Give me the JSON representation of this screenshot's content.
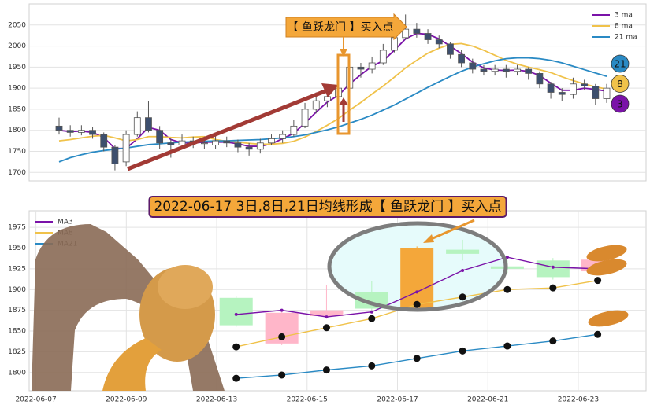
{
  "chart_data": [
    {
      "type": "candlestick",
      "open": [
        1810,
        1800,
        1795,
        1800,
        1790,
        1760,
        1725,
        1790,
        1830,
        1800,
        1770,
        1765,
        1775,
        1770,
        1765,
        1775,
        1770,
        1760,
        1755,
        1770,
        1780,
        1790,
        1810,
        1850,
        1870,
        1880,
        1900,
        1950,
        1945,
        1960,
        1990,
        2020,
        2040,
        2030,
        2015,
        2005,
        1980,
        1960,
        1945,
        1940,
        1945,
        1940,
        1945,
        1935,
        1910,
        1890,
        1885,
        1910,
        1905,
        1875
      ],
      "high": [
        1830,
        1812,
        1812,
        1808,
        1795,
        1765,
        1800,
        1845,
        1870,
        1810,
        1780,
        1790,
        1785,
        1785,
        1790,
        1785,
        1778,
        1770,
        1780,
        1790,
        1800,
        1825,
        1865,
        1890,
        1895,
        1920,
        1965,
        1960,
        1975,
        2005,
        2035,
        2075,
        2055,
        2040,
        2025,
        2010,
        1990,
        1970,
        1955,
        1955,
        1955,
        1955,
        1950,
        1940,
        1915,
        1900,
        1925,
        1920,
        1910,
        1910
      ],
      "low": [
        1790,
        1785,
        1788,
        1780,
        1750,
        1705,
        1715,
        1785,
        1795,
        1755,
        1735,
        1755,
        1758,
        1755,
        1755,
        1760,
        1748,
        1740,
        1745,
        1765,
        1770,
        1785,
        1805,
        1840,
        1855,
        1870,
        1895,
        1925,
        1935,
        1955,
        1985,
        2015,
        2020,
        2005,
        1995,
        1970,
        1950,
        1935,
        1930,
        1930,
        1925,
        1930,
        1920,
        1900,
        1875,
        1870,
        1875,
        1895,
        1860,
        1865
      ],
      "close": [
        1800,
        1795,
        1800,
        1790,
        1760,
        1720,
        1790,
        1830,
        1800,
        1770,
        1765,
        1775,
        1770,
        1770,
        1775,
        1770,
        1760,
        1755,
        1770,
        1780,
        1790,
        1810,
        1850,
        1870,
        1880,
        1900,
        1950,
        1945,
        1960,
        1990,
        2020,
        2040,
        2030,
        2015,
        2005,
        1980,
        1960,
        1945,
        1940,
        1945,
        1940,
        1945,
        1935,
        1910,
        1890,
        1885,
        1910,
        1905,
        1875,
        1900
      ],
      "up_color": "#ffffff",
      "down_color": "#3d4f6e",
      "edge_color": "#555555",
      "series": [
        {
          "name": "3 ma",
          "color": "#7a12a8",
          "values": [
            1800,
            1797,
            1798,
            1795,
            1783,
            1757,
            1757,
            1780,
            1807,
            1800,
            1778,
            1770,
            1770,
            1772,
            1772,
            1772,
            1768,
            1762,
            1762,
            1768,
            1780,
            1793,
            1817,
            1843,
            1867,
            1883,
            1910,
            1932,
            1952,
            1965,
            1990,
            2017,
            2030,
            2028,
            2017,
            2000,
            1982,
            1962,
            1948,
            1943,
            1942,
            1943,
            1940,
            1930,
            1912,
            1895,
            1895,
            1900,
            1897,
            1893
          ]
        },
        {
          "name": "8 ma",
          "color": "#f0c24a",
          "values": [
            1775,
            1778,
            1782,
            1786,
            1788,
            1782,
            1775,
            1778,
            1785,
            1785,
            1783,
            1782,
            1784,
            1785,
            1778,
            1774,
            1772,
            1769,
            1767,
            1767,
            1769,
            1774,
            1784,
            1797,
            1812,
            1828,
            1848,
            1866,
            1886,
            1905,
            1926,
            1948,
            1966,
            1983,
            1995,
            2004,
            2006,
            2000,
            1990,
            1978,
            1966,
            1957,
            1950,
            1944,
            1937,
            1927,
            1918,
            1910,
            1903,
            1898
          ]
        },
        {
          "name": "21 ma",
          "color": "#2a8ac4",
          "values": [
            1725,
            1735,
            1742,
            1748,
            1752,
            1755,
            1758,
            1762,
            1766,
            1768,
            1770,
            1772,
            1773,
            1774,
            1775,
            1775,
            1776,
            1777,
            1778,
            1780,
            1782,
            1785,
            1789,
            1795,
            1801,
            1808,
            1817,
            1826,
            1836,
            1848,
            1860,
            1874,
            1888,
            1902,
            1915,
            1928,
            1940,
            1950,
            1958,
            1965,
            1970,
            1972,
            1972,
            1970,
            1966,
            1960,
            1952,
            1944,
            1936,
            1928
          ]
        }
      ],
      "ylim": [
        1680,
        2100
      ],
      "yticks": [
        1700,
        1750,
        1800,
        1850,
        1900,
        1950,
        2000,
        2050
      ],
      "grid": true,
      "legend": "upper right",
      "callout": "【 鱼跃龙门 】买入点",
      "badges": [
        {
          "label": "21",
          "color": "#2a8ac4"
        },
        {
          "label": "8",
          "color": "#f0c24a"
        },
        {
          "label": "3",
          "color": "#7a12a8"
        }
      ]
    },
    {
      "type": "candlestick",
      "title": "2022-06-17 3日,8日,21日均线形成【 鱼跃龙门 】买入点",
      "x": [
        4.43,
        5.44,
        6.43,
        7.43,
        8.43,
        9.44,
        10.43,
        11.44,
        12.43
      ],
      "open": [
        1857,
        1872,
        1875,
        1877,
        1876,
        1943,
        1925,
        1915,
        1936
      ],
      "high": [
        1892,
        1875,
        1905,
        1910,
        1952,
        1960,
        1935,
        1938,
        1940
      ],
      "low": [
        1855,
        1833,
        1865,
        1873,
        1874,
        1935,
        1920,
        1912,
        1918
      ],
      "close": [
        1890,
        1835,
        1868,
        1897,
        1950,
        1948,
        1928,
        1935,
        1922
      ],
      "up_color": "#b6f3c0",
      "down_color": "#ffb6c9",
      "highlight": {
        "index": 4,
        "color": "#f4a73a"
      },
      "series": [
        {
          "name": "MA3",
          "color": "#7a12a8",
          "marker": "small",
          "values": [
            1870,
            1875,
            1867,
            1873,
            1897,
            1923,
            1939,
            1927,
            1925
          ]
        },
        {
          "name": "MA8",
          "color": "#f0c24a",
          "marker": "dot",
          "values": [
            1831,
            1843,
            1854,
            1865,
            1882,
            1891,
            1900,
            1902,
            1911
          ]
        },
        {
          "name": "MA21",
          "color": "#2a8ac4",
          "marker": "dot",
          "values": [
            1793,
            1797,
            1803,
            1808,
            1817,
            1826,
            1832,
            1838,
            1846
          ]
        }
      ],
      "xlim": [
        -0.15,
        13.5
      ],
      "xticks": [
        {
          "value": 0,
          "label": "2022-06-07"
        },
        {
          "value": 2,
          "label": "2022-06-09"
        },
        {
          "value": 4,
          "label": "2022-06-13"
        },
        {
          "value": 6,
          "label": "2022-06-15"
        },
        {
          "value": 8,
          "label": "2022-06-17"
        },
        {
          "value": 10,
          "label": "2022-06-21"
        },
        {
          "value": 12,
          "label": "2022-06-23"
        }
      ],
      "ylim": [
        1778,
        1995
      ],
      "yticks": [
        1800,
        1825,
        1850,
        1875,
        1900,
        1925,
        1950,
        1975
      ],
      "grid": true,
      "legend": "upper left"
    }
  ]
}
